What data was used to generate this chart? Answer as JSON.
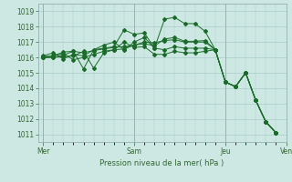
{
  "background_color": "#cde8e2",
  "grid_color": "#aacccc",
  "line_color": "#1a6b2a",
  "xlabel": "Pression niveau de la mer( hPa )",
  "ylim": [
    1010.5,
    1019.5
  ],
  "yticks": [
    1011,
    1012,
    1013,
    1014,
    1015,
    1016,
    1017,
    1018,
    1019
  ],
  "xtick_labels": [
    "Mer",
    "Sam",
    "Jeu",
    "Ven"
  ],
  "xtick_positions": [
    0,
    9,
    18,
    24
  ],
  "total_points": 27,
  "series": [
    [
      1016.1,
      1016.3,
      1015.9,
      1016.2,
      1016.1,
      1016.5,
      1016.8,
      1017.0,
      1016.5,
      1017.0,
      1017.3,
      1016.6,
      1018.5,
      1018.6,
      1018.2,
      1018.2,
      1017.7,
      1016.5,
      1014.4,
      1014.1,
      1015.0,
      1013.2,
      1011.8,
      1011.1
    ],
    [
      1016.05,
      1016.1,
      1016.25,
      1015.85,
      1016.0,
      1016.2,
      1016.4,
      1016.5,
      1016.55,
      1016.8,
      1016.9,
      1016.75,
      1017.2,
      1017.3,
      1017.05,
      1017.05,
      1017.1,
      1016.5,
      1014.4,
      1014.1,
      1015.0,
      1013.2,
      1011.8,
      1011.1
    ],
    [
      1016.0,
      1016.1,
      1016.35,
      1016.4,
      1016.3,
      1016.45,
      1016.55,
      1016.65,
      1016.7,
      1016.8,
      1017.0,
      1016.95,
      1017.1,
      1017.15,
      1017.0,
      1017.0,
      1017.0,
      1016.5,
      1014.4,
      1014.1,
      1015.0,
      1013.2,
      1011.8,
      1011.1
    ],
    [
      1016.0,
      1016.0,
      1016.15,
      1016.4,
      1015.25,
      1016.5,
      1016.6,
      1016.7,
      1017.8,
      1017.5,
      1017.6,
      1016.6,
      1016.5,
      1016.7,
      1016.6,
      1016.6,
      1016.6,
      1016.5,
      1014.4,
      1014.1,
      1015.0,
      1013.2,
      1011.8,
      1011.1
    ],
    [
      1016.0,
      1016.0,
      1016.05,
      1016.1,
      1016.4,
      1015.3,
      1016.3,
      1016.5,
      1017.0,
      1016.65,
      1016.7,
      1016.2,
      1016.2,
      1016.4,
      1016.3,
      1016.3,
      1016.4,
      1016.5,
      1014.4,
      1014.1,
      1015.0,
      1013.2,
      1011.8,
      1011.1
    ]
  ]
}
